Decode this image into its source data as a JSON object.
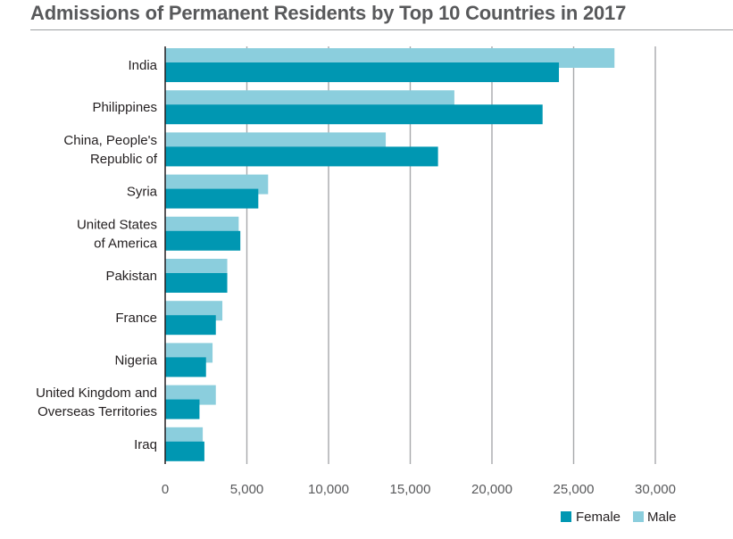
{
  "colors": {
    "female": "#0097b2",
    "male": "#8bcedd",
    "grid": "#a7a9ac",
    "axis": "#231f20",
    "title": "#58595b"
  },
  "chart_data": {
    "type": "bar",
    "orientation": "horizontal",
    "title": "Admissions of Permanent Residents by Top 10 Countries in 2017",
    "categories": [
      [
        "India"
      ],
      [
        "Philippines"
      ],
      [
        "China, People's",
        "Republic of"
      ],
      [
        "Syria"
      ],
      [
        "United States",
        "of America"
      ],
      [
        "Pakistan"
      ],
      [
        "France"
      ],
      [
        "Nigeria"
      ],
      [
        "United Kingdom and",
        "Overseas Territories"
      ],
      [
        "Iraq"
      ]
    ],
    "series": [
      {
        "name": "Male",
        "values": [
          27500,
          17700,
          13500,
          6300,
          4500,
          3800,
          3500,
          2900,
          3100,
          2300
        ]
      },
      {
        "name": "Female",
        "values": [
          24100,
          23100,
          16700,
          5700,
          4600,
          3800,
          3100,
          2500,
          2100,
          2400
        ]
      }
    ],
    "xlim": [
      0,
      30000
    ],
    "xticks": [
      0,
      5000,
      10000,
      15000,
      20000,
      25000,
      30000
    ],
    "xtick_labels": [
      "0",
      "5,000",
      "10,000",
      "15,000",
      "20,000",
      "25,000",
      "30,000"
    ],
    "xlabel": "",
    "ylabel": "",
    "grid": "vertical",
    "legend": {
      "position": "bottom-right",
      "entries": [
        "Female",
        "Male"
      ]
    }
  }
}
